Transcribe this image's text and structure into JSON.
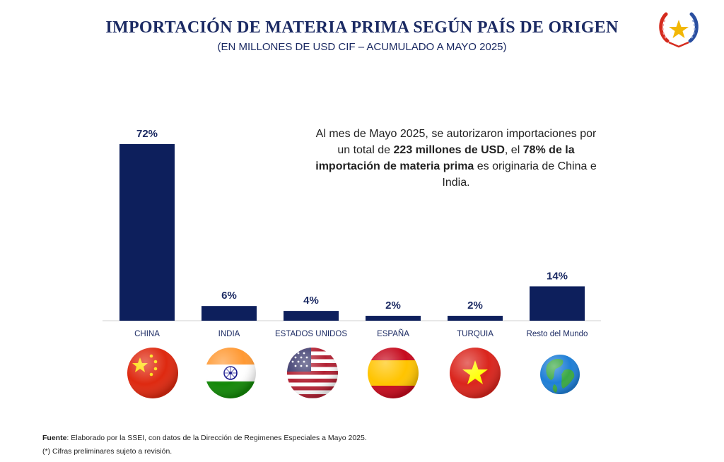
{
  "header": {
    "title": "IMPORTACIÓN DE MATERIA PRIMA SEGÚN PAÍS DE ORIGEN",
    "subtitle": "(EN MILLONES DE USD CIF – ACUMULADO A MAYO 2025)"
  },
  "note": {
    "part1": "Al mes de Mayo 2025, se autorizaron importaciones por un total de ",
    "bold1": "223 millones de USD",
    "part2": ",  el ",
    "bold2": "78% de la importación de materia prima",
    "part3": " es originaria de China e India."
  },
  "chart_data": {
    "type": "bar",
    "categories": [
      "CHINA",
      "INDIA",
      "ESTADOS UNIDOS",
      "ESPAÑA",
      "TURQUIA",
      "Resto del Mundo"
    ],
    "values": [
      72,
      6,
      4,
      2,
      2,
      14
    ],
    "data_labels": [
      "72%",
      "6%",
      "4%",
      "2%",
      "2%",
      "14%"
    ],
    "ylim": [
      0,
      72
    ],
    "grid": false,
    "bar_color": "#0d1f5c",
    "icons": [
      "china-flag-icon",
      "india-flag-icon",
      "usa-flag-icon",
      "spain-flag-icon",
      "vietnam-flag-icon",
      "globe-icon"
    ]
  },
  "footer": {
    "source_label": "Fuente",
    "source_text": ": Elaborado por la SSEI, con datos de la Dirección de Regimenes Especiales a Mayo 2025.",
    "note": "(*) Cifras preliminares sujeto a revisión."
  }
}
